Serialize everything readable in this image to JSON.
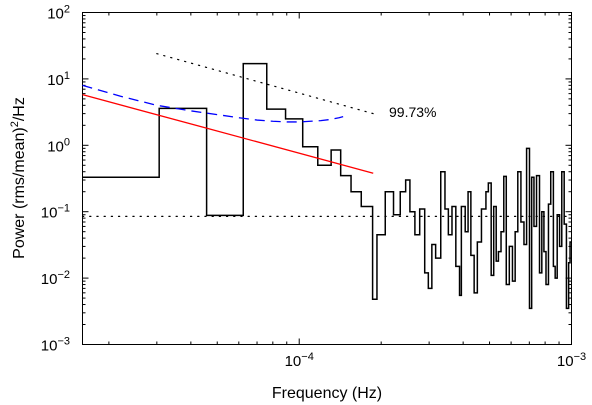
{
  "chart_data": {
    "type": "line",
    "title": "",
    "xlabel": "Frequency (Hz)",
    "ylabel": "Power (rms/mean)",
    "ylabel_sup": "2",
    "ylabel_suffix": "/Hz",
    "xscale": "log",
    "yscale": "log",
    "xlim": [
      1.6e-05,
      0.001
    ],
    "ylim": [
      0.001,
      100
    ],
    "x_ticks": [
      {
        "value": 0.0001,
        "base": "10",
        "exp": "−4"
      },
      {
        "value": 0.001,
        "base": "10",
        "exp": "−3"
      }
    ],
    "y_ticks": [
      {
        "value": 0.001,
        "base": "10",
        "exp": "−3"
      },
      {
        "value": 0.01,
        "base": "10",
        "exp": "−2"
      },
      {
        "value": 0.1,
        "base": "10",
        "exp": "−1"
      },
      {
        "value": 1,
        "base": "10",
        "exp": "0"
      },
      {
        "value": 10,
        "base": "10",
        "exp": "1"
      },
      {
        "value": 100,
        "base": "10",
        "exp": "2"
      }
    ],
    "annotation": "99.73%",
    "series": [
      {
        "style": "step",
        "color": "#000000",
        "x": [
          1.6e-05,
          3.06e-05,
          4.57e-05,
          6.23e-05,
          7.6e-05,
          8.91e-05,
          0.000103,
          0.000117,
          0.000131,
          0.000142,
          0.000155,
          0.000169,
          0.000186,
          0.000193,
          0.000207,
          0.000222,
          0.000235,
          0.000246,
          0.000255,
          0.000266,
          0.000277,
          0.000289,
          0.000298,
          0.000307,
          0.000317,
          0.000331,
          0.000343,
          0.000353,
          0.000364,
          0.000376,
          0.000388,
          0.000394,
          0.000407,
          0.000417,
          0.000427,
          0.000439,
          0.000451,
          0.000467,
          0.000485,
          0.000495,
          0.000507,
          0.000518,
          0.000529,
          0.000539,
          0.000551,
          0.000564,
          0.000576,
          0.000591,
          0.000607,
          0.000621,
          0.000635,
          0.000652,
          0.000669,
          0.000684,
          0.000701,
          0.000714,
          0.000728,
          0.000744,
          0.000763,
          0.000778,
          0.000792,
          0.000806,
          0.000823,
          0.000839,
          0.000858,
          0.000871,
          0.000886,
          0.000904,
          0.000921,
          0.00094,
          0.000958,
          0.000976,
          0.000988
        ],
        "y": [
          0.33,
          3.6,
          0.088,
          17,
          3.5,
          2.5,
          0.95,
          0.5,
          0.85,
          0.35,
          0.2,
          0.12,
          0.0048,
          0.045,
          0.2,
          0.09,
          0.2,
          0.3,
          0.1,
          0.045,
          0.11,
          0.012,
          0.007,
          0.032,
          0.02,
          0.4,
          0.11,
          0.045,
          0.12,
          0.015,
          0.0055,
          0.12,
          0.05,
          0.2,
          0.022,
          0.006,
          0.035,
          0.11,
          0.2,
          0.27,
          0.011,
          0.12,
          0.018,
          0.025,
          0.05,
          0.34,
          0.008,
          0.03,
          0.009,
          0.05,
          0.4,
          0.07,
          0.032,
          0.9,
          0.0035,
          0.33,
          0.06,
          0.35,
          0.012,
          0.1,
          0.025,
          0.008,
          0.13,
          0.4,
          0.015,
          0.01,
          0.09,
          0.03,
          0.4,
          0.065,
          0.0035,
          0.017,
          0.035
        ]
      },
      {
        "style": "solid",
        "color": "#ff0000",
        "x": [
          1.6e-05,
          0.000187
        ],
        "y": [
          5.8,
          0.38
        ]
      },
      {
        "style": "dashed",
        "color": "#0000ff",
        "x": [
          1.6e-05,
          2.2e-05,
          3e-05,
          4e-05,
          5e-05,
          6e-05,
          7e-05,
          8e-05,
          9e-05,
          0.0001,
          0.00011,
          0.00012,
          0.00013,
          0.00014,
          0.000145
        ],
        "y": [
          8.0,
          5.5,
          4.0,
          3.3,
          2.9,
          2.6,
          2.4,
          2.3,
          2.25,
          2.25,
          2.3,
          2.35,
          2.45,
          2.6,
          2.7
        ]
      },
      {
        "style": "dotted",
        "color": "#000000",
        "x": [
          3e-05,
          0.000187
        ],
        "y": [
          24,
          3.0
        ]
      },
      {
        "style": "dotted",
        "color": "#000000",
        "x": [
          1.6e-05,
          0.001
        ],
        "y": [
          0.085,
          0.085
        ]
      }
    ]
  }
}
